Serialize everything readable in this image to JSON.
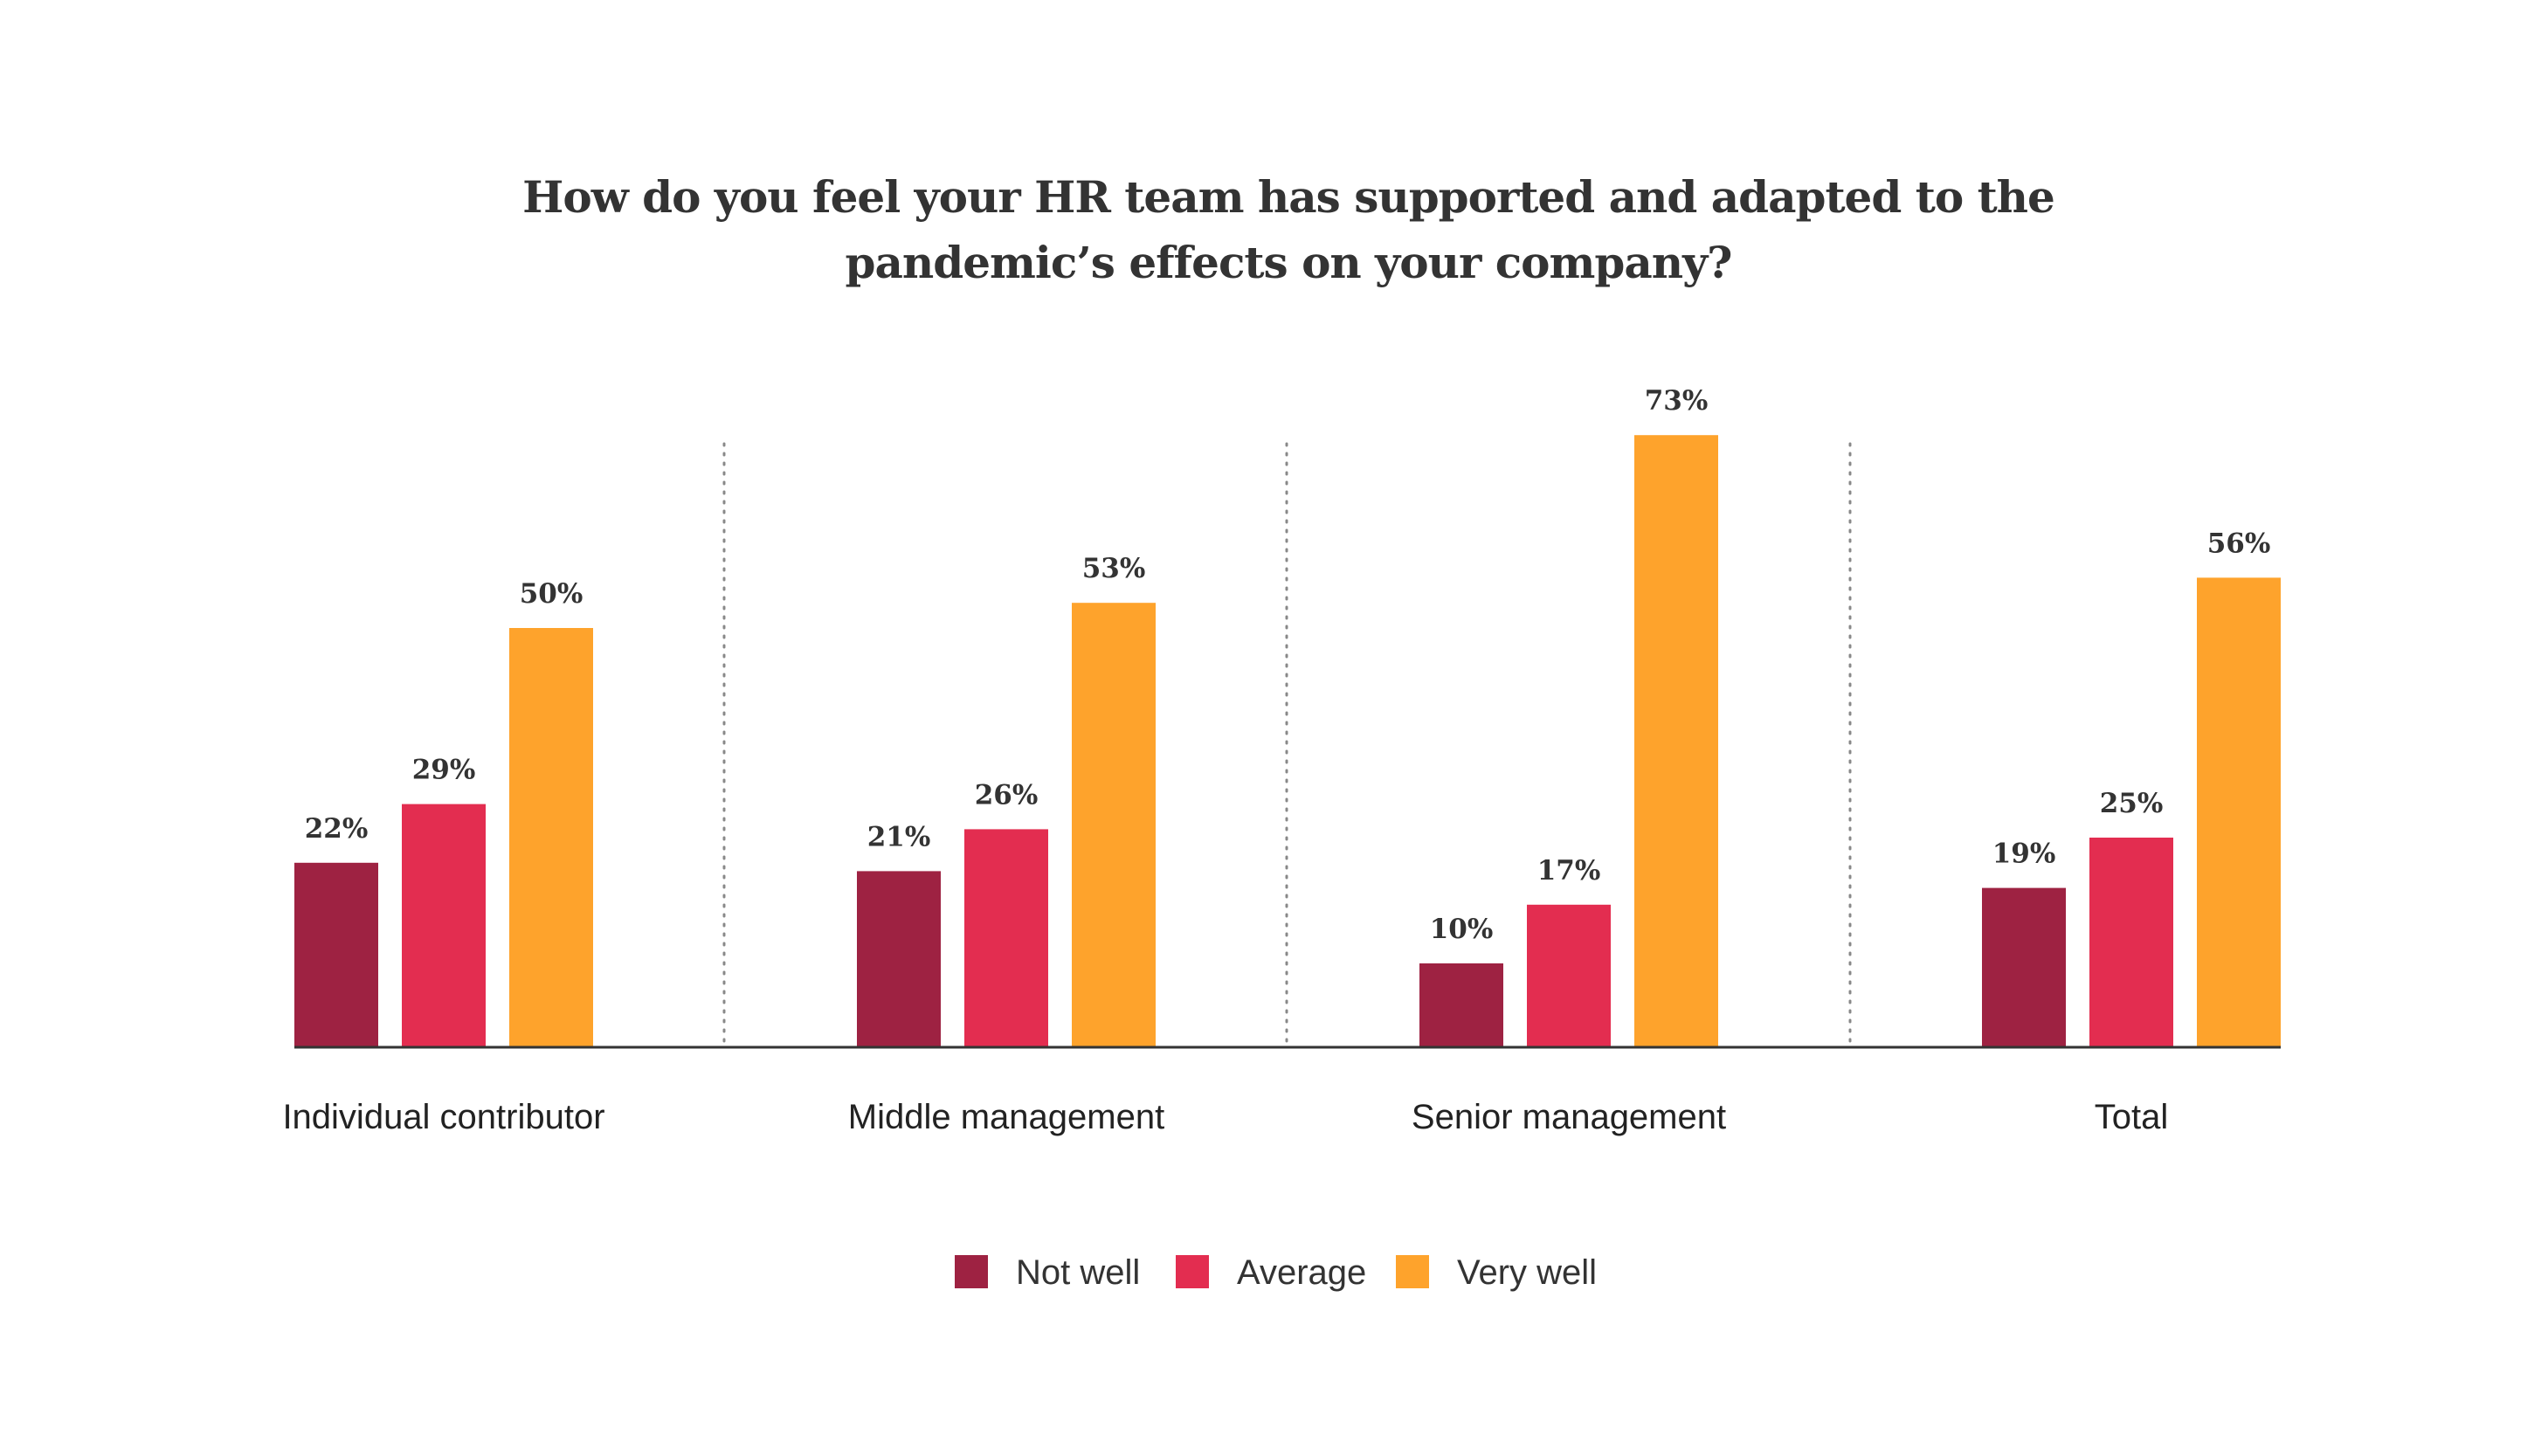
{
  "chart_data": {
    "type": "bar",
    "title": "How do you feel your HR team has supported and adapted to the pandemic’s effects on your company?",
    "title_lines": [
      "How do you feel your HR team has supported and adapted to the",
      "pandemic’s effects on your company?"
    ],
    "categories": [
      "Individual contributor",
      "Middle management",
      "Senior management",
      "Total"
    ],
    "series": [
      {
        "name": "Not well",
        "color": "#9e2242",
        "values": [
          22,
          21,
          10,
          19
        ],
        "labels": [
          "22%",
          "21%",
          "10%",
          "19%"
        ]
      },
      {
        "name": "Average",
        "color": "#e32d50",
        "values": [
          29,
          26,
          17,
          25
        ],
        "labels": [
          "29%",
          "26%",
          "17%",
          "25%"
        ]
      },
      {
        "name": "Very well",
        "color": "#fea32c",
        "values": [
          50,
          53,
          73,
          56
        ],
        "labels": [
          "50%",
          "53%",
          "73%",
          "56%"
        ]
      }
    ],
    "unit": "%",
    "ylim": [
      0,
      73
    ],
    "xlabel": "",
    "ylabel": "",
    "grid": false,
    "separators": "dotted vertical between groups",
    "legend_position": "bottom-center"
  }
}
